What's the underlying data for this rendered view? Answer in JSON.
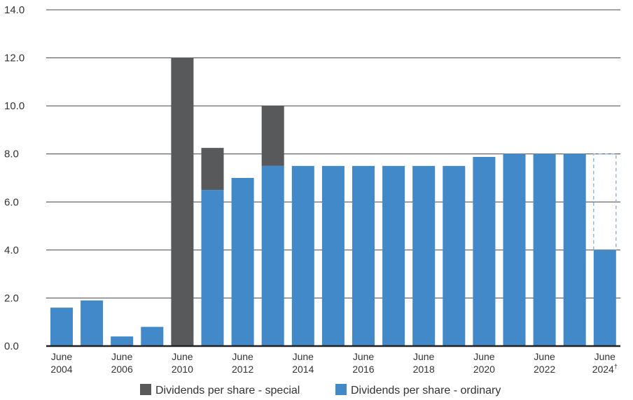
{
  "chart_data": {
    "type": "bar",
    "stacked": true,
    "title": "",
    "xlabel": "",
    "ylabel": "",
    "ylim": [
      0,
      14
    ],
    "y_ticks": [
      "0.0",
      "2.0",
      "4.0",
      "6.0",
      "8.0",
      "10.0",
      "12.0",
      "14.0"
    ],
    "grid": true,
    "legend_position": "bottom",
    "categories": [
      "2004",
      "2005",
      "2006",
      "2007",
      "2010",
      "2011",
      "2012",
      "2013",
      "2014",
      "2015",
      "2016",
      "2017",
      "2018",
      "2019",
      "2020",
      "2021",
      "2022",
      "2023",
      "2024"
    ],
    "x_tick_labels": [
      {
        "index": 0,
        "line1": "June",
        "line2": "2004"
      },
      {
        "index": 2,
        "line1": "June",
        "line2": "2006"
      },
      {
        "index": 4,
        "line1": "June",
        "line2": "2010"
      },
      {
        "index": 6,
        "line1": "June",
        "line2": "2012"
      },
      {
        "index": 8,
        "line1": "June",
        "line2": "2014"
      },
      {
        "index": 10,
        "line1": "June",
        "line2": "2016"
      },
      {
        "index": 12,
        "line1": "June",
        "line2": "2018"
      },
      {
        "index": 14,
        "line1": "June",
        "line2": "2020"
      },
      {
        "index": 16,
        "line1": "June",
        "line2": "2022"
      },
      {
        "index": 18,
        "line1": "June",
        "line2": "2024",
        "superscript": "†"
      }
    ],
    "series": [
      {
        "name": "Dividends per share - ordinary",
        "color": "#4189c9",
        "values": [
          1.6,
          1.9,
          0.4,
          0.8,
          0,
          6.5,
          7.0,
          7.5,
          7.5,
          7.5,
          7.5,
          7.5,
          7.5,
          7.5,
          7.875,
          8.0,
          8.0,
          8.0,
          4.0
        ]
      },
      {
        "name": "Dividends per share - special",
        "color": "#58595b",
        "values": [
          0,
          0,
          0,
          0,
          12.0,
          1.75,
          0,
          2.5,
          0,
          0,
          0,
          0,
          0,
          0,
          0,
          0,
          0,
          0,
          0
        ]
      }
    ],
    "annotations": [
      {
        "type": "dashed-outline",
        "index": 18,
        "from": 4.0,
        "to": 8.0,
        "color": "#8fb8e0"
      }
    ],
    "legend": [
      {
        "label": "Dividends per share - special",
        "color": "#58595b"
      },
      {
        "label": "Dividends per share - ordinary",
        "color": "#4189c9"
      }
    ]
  }
}
